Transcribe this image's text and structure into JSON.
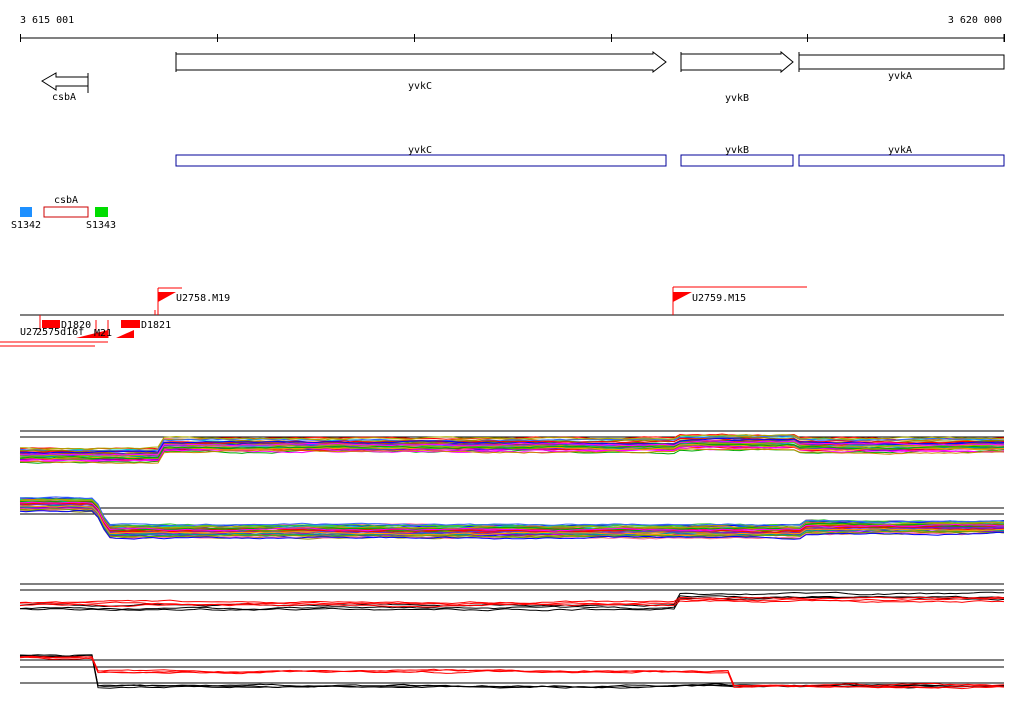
{
  "ruler": {
    "start_label": "3 615 001",
    "end_label": "3 620 000",
    "start": 3615001,
    "end": 3620000
  },
  "genes": [
    {
      "name": "csbA",
      "start": 3615025,
      "end": 3615345,
      "strand": "-"
    },
    {
      "name": "yvkC",
      "start": 3615795,
      "end": 3618299,
      "strand": "+"
    },
    {
      "name": "yvkB",
      "start": 3618370,
      "end": 3618942,
      "strand": "+"
    },
    {
      "name": "yvkA",
      "start": 3619005,
      "end": 3620000,
      "strand": "+"
    }
  ],
  "gene_boxes": [
    {
      "name": "yvkC",
      "start": 3615795,
      "end": 3618299
    },
    {
      "name": "yvkB",
      "start": 3618370,
      "end": 3618942
    },
    {
      "name": "yvkA",
      "start": 3619005,
      "end": 3620000
    }
  ],
  "small_features": {
    "S1342": {
      "label": "S1342",
      "color": "#1e90ff"
    },
    "csbA": {
      "label": "csbA",
      "color": "#cc0000"
    },
    "S1343": {
      "label": "S1343",
      "color": "#00dd00"
    }
  },
  "transcripts": {
    "U2758": {
      "label": "U2758.M19"
    },
    "U2759": {
      "label": "U2759.M15"
    },
    "D1820": {
      "label": "D1820"
    },
    "D1821": {
      "label": "D1821"
    },
    "M21": {
      "label": "M21"
    },
    "U27": {
      "label": "U27"
    },
    "overlap": {
      "label": "2575d16f"
    }
  },
  "colors": {
    "feature": "#ff0000",
    "gene_box": "#000099",
    "axis": "#000000"
  }
}
